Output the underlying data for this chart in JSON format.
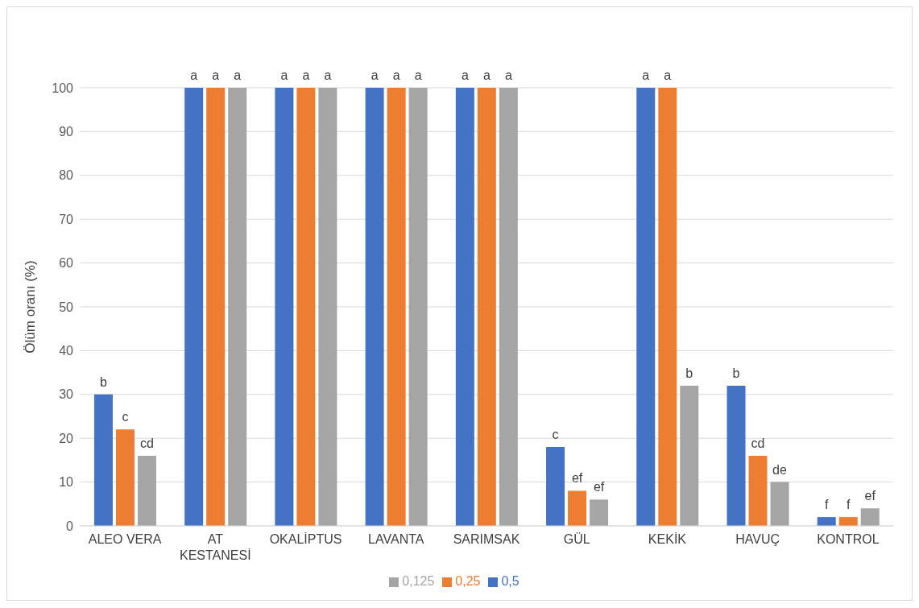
{
  "chart_data": {
    "type": "bar",
    "ylabel": "Ölüm oranı (%)",
    "categories": [
      "ALEO VERA",
      "AT KESTANESİ",
      "OKALİPTUS",
      "LAVANTA",
      "SARIMSAK",
      "GÜL",
      "KEKİK",
      "HAVUÇ",
      "KONTROL"
    ],
    "series": [
      {
        "name": "0,5",
        "color": "#4472c4",
        "values": [
          30,
          100,
          100,
          100,
          100,
          18,
          100,
          32,
          2
        ],
        "value_labels": [
          "b",
          "a",
          "a",
          "a",
          "a",
          "c",
          "a",
          "b",
          "f"
        ]
      },
      {
        "name": "0,25",
        "color": "#ed7d31",
        "values": [
          22,
          100,
          100,
          100,
          100,
          8,
          100,
          16,
          2
        ],
        "value_labels": [
          "c",
          "a",
          "a",
          "a",
          "a",
          "ef",
          "a",
          "cd",
          "f"
        ]
      },
      {
        "name": "0,125",
        "color": "#a5a5a5",
        "values": [
          16,
          100,
          100,
          100,
          100,
          6,
          32,
          10,
          4
        ],
        "value_labels": [
          "cd",
          "a",
          "a",
          "a",
          "a",
          "ef",
          "b",
          "de",
          "ef"
        ]
      }
    ],
    "ylim": [
      0,
      100
    ],
    "yticks": [
      0,
      10,
      20,
      30,
      40,
      50,
      60,
      70,
      80,
      90,
      100
    ],
    "grid": "y",
    "legend": "bottom"
  }
}
